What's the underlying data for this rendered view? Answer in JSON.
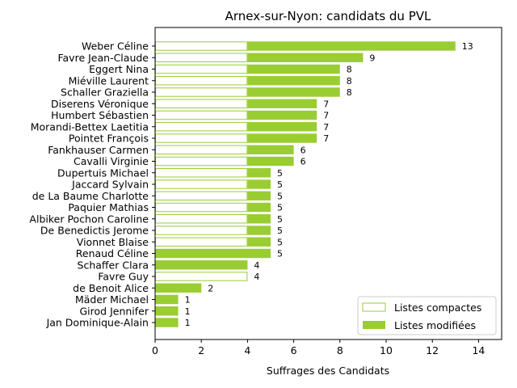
{
  "chart_data": {
    "type": "bar",
    "orientation": "horizontal",
    "stacked": true,
    "title": "Arnex-sur-Nyon: candidats du PVL",
    "xlabel": "Suffrages des Candidats",
    "ylabel": "",
    "xlim": [
      0,
      15
    ],
    "xticks": [
      0,
      2,
      4,
      6,
      8,
      10,
      12,
      14
    ],
    "grid": false,
    "legend_position": "bottom-right",
    "categories": [
      "Weber Céline",
      "Favre Jean-Claude",
      "Eggert Nina",
      "Miéville Laurent",
      "Schaller Graziella",
      "Diserens Véronique",
      "Humbert Sébastien",
      "Morandi-Bettex Laetitia",
      "Pointet François",
      "Fankhauser Carmen",
      "Cavalli Virginie",
      "Dupertuis Michael",
      "Jaccard Sylvain",
      "de La Baume Charlotte",
      "Paquier Mathias",
      "Albiker Pochon Caroline",
      "De Benedictis Jerome",
      "Vionnet Blaise",
      "Renaud Céline",
      "Schaffer Clara",
      "Favre Guy",
      "de Benoit Alice",
      "Mäder Michael",
      "Girod Jennifer",
      "Jan Dominique-Alain"
    ],
    "series": [
      {
        "name": "Listes compactes",
        "color": "#9acd32",
        "style": "outline",
        "values": [
          4,
          4,
          4,
          4,
          4,
          4,
          4,
          4,
          4,
          4,
          4,
          4,
          4,
          4,
          4,
          4,
          4,
          4,
          0,
          0,
          4,
          0,
          0,
          0,
          0
        ]
      },
      {
        "name": "Listes modifiées",
        "color": "#9acd32",
        "style": "filled",
        "values": [
          9,
          5,
          4,
          4,
          4,
          3,
          3,
          3,
          3,
          2,
          2,
          1,
          1,
          1,
          1,
          1,
          1,
          1,
          5,
          4,
          0,
          2,
          1,
          1,
          1
        ]
      }
    ],
    "totals": [
      13,
      9,
      8,
      8,
      8,
      7,
      7,
      7,
      7,
      6,
      6,
      5,
      5,
      5,
      5,
      5,
      5,
      5,
      5,
      4,
      4,
      2,
      1,
      1,
      1
    ]
  }
}
